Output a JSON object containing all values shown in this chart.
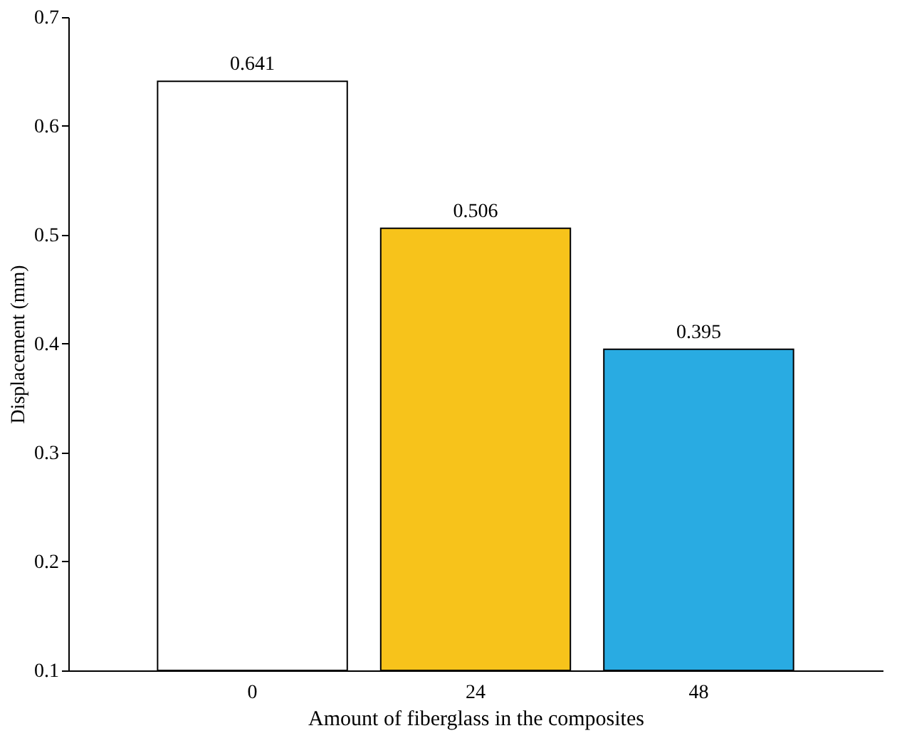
{
  "chart_data": {
    "type": "bar",
    "xlabel": "Amount of fiberglass in the composites",
    "ylabel": "Displacement (mm)",
    "categories": [
      "0",
      "24",
      "48"
    ],
    "values": [
      0.641,
      0.506,
      0.395
    ],
    "colors": [
      "#ffffff",
      "#f7c31b",
      "#29abe2"
    ],
    "ylim": [
      0.1,
      0.7
    ],
    "yticks": [
      0.1,
      0.2,
      0.3,
      0.4,
      0.5,
      0.6,
      0.7
    ],
    "data_labels": true,
    "grid": false
  }
}
